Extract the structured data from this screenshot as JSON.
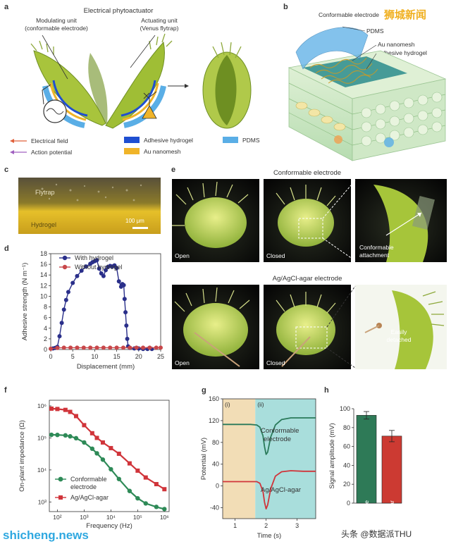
{
  "figure": {
    "panels": {
      "a": {
        "letter": "a",
        "title": "Electrical phytoactuator",
        "modulating_label_1": "Modulating unit",
        "modulating_label_2": "(conformable electrode)",
        "actuating_label_1": "Actuating unit",
        "actuating_label_2": "(Venus flytrap)",
        "legend": {
          "electrical_field": "Electrical field",
          "action_potential": "Action potential",
          "adhesive_hydrogel": "Adhesive hydrogel",
          "au_nanomesh": "Au nanomesh",
          "pdms": "PDMS"
        },
        "colors": {
          "hydrogel": "#1f4fd1",
          "nanomesh": "#f0b429",
          "pdms": "#5aaee6",
          "field": "#e0603a",
          "potential": "#a060c0"
        }
      },
      "b": {
        "letter": "b",
        "labels": [
          "Conformable electrode",
          "PDMS",
          "Au nanomesh",
          "Adhesive hydrogel"
        ]
      },
      "c": {
        "letter": "c",
        "flytrap_label": "Flytrap",
        "hydrogel_label": "Hydrogel",
        "scale_bar": "100 μm"
      },
      "d": {
        "letter": "d",
        "chart_data": {
          "type": "line",
          "xlabel": "Displacement (mm)",
          "ylabel": "Adhesive strength (N m⁻¹)",
          "xlim": [
            0,
            25
          ],
          "ylim": [
            0,
            18
          ],
          "xticks": [
            "0",
            "5",
            "10",
            "15",
            "20",
            "25"
          ],
          "yticks": [
            "0",
            "2",
            "4",
            "6",
            "8",
            "10",
            "12",
            "14",
            "16",
            "18"
          ],
          "series": [
            {
              "name": "With hydrogel",
              "color": "#2a2f8a",
              "x": [
                0.5,
                1.0,
                1.5,
                2.0,
                2.5,
                3.0,
                3.5,
                4.0,
                5.0,
                6.0,
                7.0,
                8.0,
                9.0,
                9.5,
                10.0,
                10.5,
                11.0,
                11.5,
                12.0,
                12.5,
                13.0,
                13.5,
                14.0,
                14.5,
                15.0,
                15.5,
                16.0,
                16.3,
                16.6,
                16.8,
                17.0,
                17.2,
                17.4,
                17.6,
                18.0,
                19.0,
                20.0,
                21.0,
                22.0,
                23.0
              ],
              "y": [
                0.2,
                0.3,
                0.5,
                2.5,
                5.0,
                7.5,
                9.3,
                10.8,
                12.5,
                13.8,
                14.8,
                15.6,
                16.1,
                16.4,
                16.6,
                16.8,
                15.2,
                14.3,
                13.8,
                14.9,
                15.5,
                15.7,
                15.6,
                15.8,
                15.3,
                12.8,
                11.8,
                12.3,
                12.1,
                9.5,
                7.0,
                4.5,
                2.0,
                0.6,
                0.3,
                0.2,
                0.2,
                0.1,
                0.1,
                0.1
              ]
            },
            {
              "name": "Without hydrogel",
              "color": "#c8474a",
              "x": [
                0,
                1.5,
                3,
                4.5,
                6,
                7.5,
                9,
                10.5,
                12,
                13.5,
                15,
                16.5,
                18,
                19.5,
                21,
                22.5,
                24,
                25
              ],
              "y": [
                0.15,
                0.3,
                0.35,
                0.35,
                0.35,
                0.35,
                0.35,
                0.35,
                0.35,
                0.35,
                0.35,
                0.35,
                0.35,
                0.35,
                0.35,
                0.35,
                0.35,
                0.35
              ]
            }
          ]
        }
      },
      "e": {
        "letter": "e",
        "top_title": "Conformable electrode",
        "bottom_title": "Ag/AgCl-agar electrode",
        "labels": {
          "open": "Open",
          "closed": "Closed",
          "attach_1": "Conformable",
          "attach_2": "attachment",
          "detach_1": "Easily",
          "detach_2": "detached"
        }
      },
      "f": {
        "letter": "f",
        "chart_data": {
          "type": "scatter",
          "xlabel": "Frequency (Hz)",
          "ylabel": "On-plant impedance (Ω)",
          "xscale": "log",
          "yscale": "log",
          "xlim": [
            50,
            1500000
          ],
          "ylim": [
            500,
            1500000
          ],
          "xticks": [
            "10²",
            "10³",
            "10⁴",
            "10⁵",
            "10⁶"
          ],
          "yticks": [
            "10³",
            "10⁴",
            "10⁵",
            "10⁶"
          ],
          "legend": [
            "Conformable electrode",
            "Ag/AgCl-agar"
          ],
          "series": [
            {
              "name": "Conformable electrode",
              "color": "#2e8a57",
              "x": [
                60,
                100,
                200,
                300,
                500,
                1000,
                2000,
                3000,
                5000,
                10000,
                20000,
                50000,
                100000,
                200000,
                500000,
                1000000
              ],
              "y": [
                125000,
                124000,
                120000,
                112000,
                98000,
                72000,
                46000,
                33000,
                21000,
                10500,
                5200,
                2200,
                1300,
                900,
                700,
                600
              ]
            },
            {
              "name": "Ag/AgCl-agar",
              "color": "#d0343a",
              "x": [
                60,
                100,
                200,
                300,
                500,
                1000,
                2000,
                3000,
                5000,
                10000,
                20000,
                50000,
                100000,
                200000,
                500000,
                1000000
              ],
              "y": [
                820000,
                800000,
                750000,
                650000,
                480000,
                250000,
                140000,
                100000,
                72000,
                48000,
                32000,
                16000,
                9500,
                5800,
                3600,
                2500
              ]
            }
          ]
        }
      },
      "g": {
        "letter": "g",
        "chart_data": {
          "type": "line",
          "xlabel": "Time (s)",
          "ylabel": "Potential (mV)",
          "xlim": [
            0.6,
            3.6
          ],
          "ylim": [
            -60,
            160
          ],
          "xticks": [
            "1",
            "2",
            "3"
          ],
          "yticks": [
            "-40",
            "0",
            "40",
            "80",
            "120",
            "160"
          ],
          "regions": [
            {
              "label": "(i)",
              "from": 0.6,
              "to": 1.65,
              "color": "#f2ddb6"
            },
            {
              "label": "(ii)",
              "from": 1.65,
              "to": 3.6,
              "color": "#a9dedc"
            }
          ],
          "series": [
            {
              "name": "Conformable electrode",
              "color": "#2a7a5a",
              "x": [
                0.6,
                1.0,
                1.5,
                1.7,
                1.8,
                1.9,
                1.95,
                2.0,
                2.05,
                2.15,
                2.3,
                2.5,
                2.8,
                3.2,
                3.6
              ],
              "y": [
                113,
                113,
                113,
                112,
                108,
                92,
                72,
                58,
                62,
                90,
                112,
                122,
                125,
                125,
                125
              ]
            },
            {
              "name": "Ag/AgCl-agar",
              "color": "#d0343a",
              "x": [
                0.6,
                1.0,
                1.5,
                1.7,
                1.8,
                1.9,
                1.95,
                2.0,
                2.05,
                2.15,
                2.3,
                2.5,
                2.8,
                3.2,
                3.6
              ],
              "y": [
                8,
                8,
                8,
                8,
                5,
                -10,
                -30,
                -42,
                -35,
                -5,
                18,
                26,
                28,
                27,
                27
              ]
            }
          ],
          "labels": {
            "conformable_1": "Conformable",
            "conformable_2": "electrode",
            "agcl": "Ag/AgCl-agar"
          }
        }
      },
      "h": {
        "letter": "h",
        "chart_data": {
          "type": "bar",
          "ylabel": "Signal amplitude (mV)",
          "ylim": [
            0,
            100
          ],
          "yticks": [
            "0",
            "20",
            "40",
            "60",
            "80",
            "100"
          ],
          "categories": [
            "Conformable electrode",
            "Ag/AgCl-agar"
          ],
          "values": [
            93,
            71
          ],
          "errors": [
            4,
            6
          ],
          "colors": [
            "#2e7a57",
            "#cc3a32"
          ]
        }
      }
    },
    "watermarks": {
      "top_right": "狮城新闻",
      "bottom_left": "shicheng.news",
      "bottom_right": "头条 @数据派THU"
    }
  }
}
